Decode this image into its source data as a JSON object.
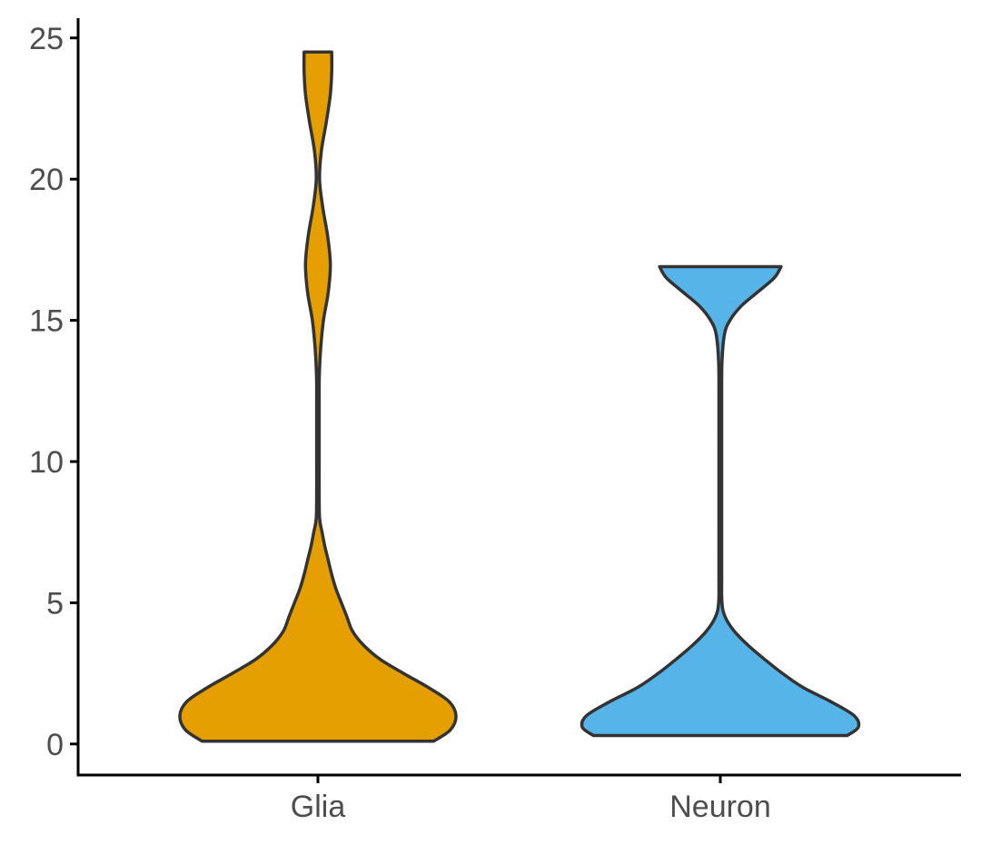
{
  "chart_data": {
    "type": "violin",
    "title": "",
    "xlabel": "",
    "ylabel": "",
    "categories": [
      "Glia",
      "Neuron"
    ],
    "ylim": [
      -1.1,
      25.7
    ],
    "yticks": [
      0,
      5,
      10,
      15,
      20,
      25
    ],
    "grid": false,
    "legend": "none",
    "series": [
      {
        "category": "Glia",
        "color": "#E69F00",
        "y_min": 0.1,
        "y_max": 24.5,
        "density": [
          [
            0.1,
            0.84
          ],
          [
            0.5,
            0.96
          ],
          [
            1.0,
            1.0
          ],
          [
            1.5,
            0.95
          ],
          [
            2.0,
            0.8
          ],
          [
            2.5,
            0.62
          ],
          [
            3.0,
            0.45
          ],
          [
            3.5,
            0.33
          ],
          [
            4.0,
            0.25
          ],
          [
            4.5,
            0.21
          ],
          [
            5.0,
            0.17
          ],
          [
            5.5,
            0.13
          ],
          [
            6.0,
            0.1
          ],
          [
            6.5,
            0.075
          ],
          [
            7.0,
            0.05
          ],
          [
            7.5,
            0.03
          ],
          [
            8.0,
            0.012
          ],
          [
            9.0,
            0.009
          ],
          [
            10.0,
            0.009
          ],
          [
            11.0,
            0.009
          ],
          [
            12.0,
            0.009
          ],
          [
            13.0,
            0.01
          ],
          [
            14.0,
            0.02
          ],
          [
            15.0,
            0.04
          ],
          [
            16.0,
            0.075
          ],
          [
            17.0,
            0.09
          ],
          [
            18.0,
            0.07
          ],
          [
            19.0,
            0.035
          ],
          [
            20.0,
            0.012
          ],
          [
            21.0,
            0.025
          ],
          [
            22.0,
            0.06
          ],
          [
            23.0,
            0.09
          ],
          [
            23.8,
            0.1
          ],
          [
            24.5,
            0.1
          ]
        ]
      },
      {
        "category": "Neuron",
        "color": "#56B4E9",
        "y_min": 0.3,
        "y_max": 16.9,
        "density": [
          [
            0.3,
            0.92
          ],
          [
            0.6,
            1.0
          ],
          [
            1.0,
            0.97
          ],
          [
            1.5,
            0.8
          ],
          [
            2.0,
            0.6
          ],
          [
            2.5,
            0.45
          ],
          [
            3.0,
            0.32
          ],
          [
            3.5,
            0.2
          ],
          [
            4.0,
            0.1
          ],
          [
            4.5,
            0.035
          ],
          [
            5.0,
            0.012
          ],
          [
            6.0,
            0.01
          ],
          [
            8.0,
            0.01
          ],
          [
            10.0,
            0.01
          ],
          [
            12.0,
            0.01
          ],
          [
            13.5,
            0.012
          ],
          [
            14.5,
            0.03
          ],
          [
            15.0,
            0.07
          ],
          [
            15.5,
            0.15
          ],
          [
            16.0,
            0.27
          ],
          [
            16.5,
            0.39
          ],
          [
            16.9,
            0.44
          ]
        ]
      }
    ]
  }
}
